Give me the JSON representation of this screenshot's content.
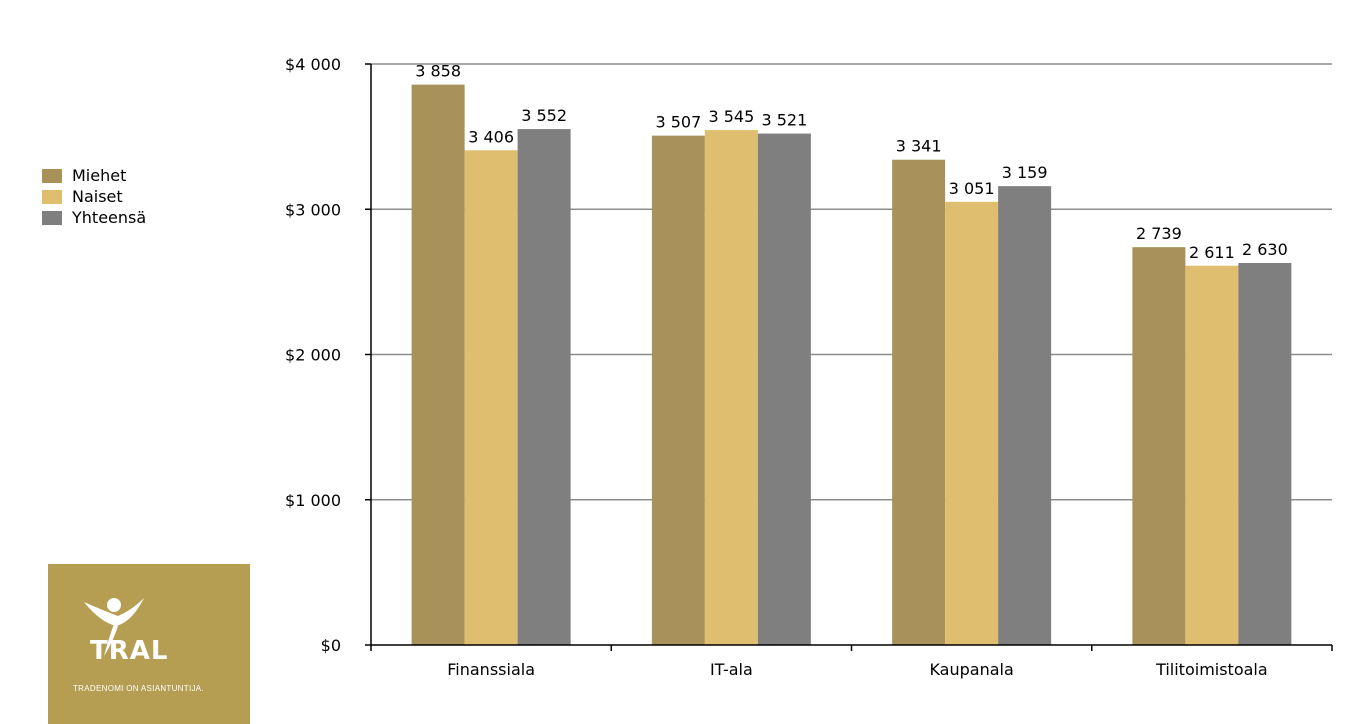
{
  "colors": {
    "miehet": "#a8925a",
    "naiset": "#dfbf6f",
    "yhteensa": "#7f7f7f",
    "grid": "#8c8c8c",
    "logo_bg": "#b59d52"
  },
  "legend": [
    {
      "label": "Miehet",
      "color": "#a8925a"
    },
    {
      "label": "Naiset",
      "color": "#dfbf6f"
    },
    {
      "label": "Yhteensä",
      "color": "#7f7f7f"
    }
  ],
  "logo": {
    "name": "TRAL",
    "tagline": "TRADENOMI ON ASIANTUNTIJA."
  },
  "chart_data": {
    "type": "bar",
    "categories": [
      "Finanssiala",
      "IT-ala",
      "Kaupanala",
      "Tilitoimistoala"
    ],
    "series": [
      {
        "name": "Miehet",
        "values": [
          3858,
          3507,
          3341,
          2739
        ],
        "labels": [
          "3 858",
          "3 507",
          "3 341",
          "2 739"
        ]
      },
      {
        "name": "Naiset",
        "values": [
          3406,
          3545,
          3051,
          2611
        ],
        "labels": [
          "3 406",
          "3 545",
          "3 051",
          "2 611"
        ]
      },
      {
        "name": "Yhteensä",
        "values": [
          3552,
          3521,
          3159,
          2630
        ],
        "labels": [
          "3 552",
          "3 521",
          "3 159",
          "2 630"
        ]
      }
    ],
    "yticks": [
      0,
      1000,
      2000,
      3000,
      4000
    ],
    "ytick_labels": [
      "$0",
      "$1 000",
      "$2 000",
      "$3 000",
      "$4 000"
    ],
    "ylim": [
      0,
      4000
    ],
    "grid": true,
    "legend_position": "left",
    "title": "",
    "xlabel": "",
    "ylabel": ""
  }
}
